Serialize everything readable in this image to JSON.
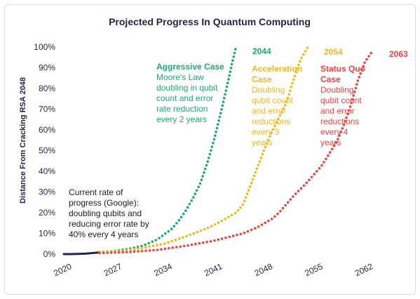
{
  "chart_data": {
    "type": "line",
    "title": "Projected Progress In Quantum Computing",
    "ylabel": "Distance From Cracking RSA 2048",
    "xlabel": "",
    "x_ticks": [
      "2020",
      "2027",
      "2034",
      "2041",
      "2048",
      "2055",
      "2062"
    ],
    "y_ticks": [
      "0%",
      "10%",
      "20%",
      "30%",
      "40%",
      "50%",
      "60%",
      "70%",
      "80%",
      "90%",
      "100%"
    ],
    "xlim": [
      2020,
      2063
    ],
    "ylim": [
      0,
      100
    ],
    "y_unit": "%",
    "current_rate_note": [
      "Current rate of",
      "progress (Google):",
      "doubling qubits and",
      "reducing error rate by",
      "40% every 4 years"
    ],
    "current_rate_color": "#1f2544",
    "current_rate": {
      "x": [
        2020,
        2021,
        2022,
        2023,
        2024,
        2025
      ],
      "y": [
        0,
        0,
        0.1,
        0.2,
        0.5,
        0.8
      ]
    },
    "series": [
      {
        "key": "aggressive",
        "color": "#1faa72",
        "end_label": "2044",
        "annotation_title": [
          "Aggressive Case"
        ],
        "annotation_body": [
          "Moore's Law",
          "doubling in qubit",
          "count and error",
          "rate reduction",
          "every 2 years"
        ],
        "x": [
          2025,
          2027,
          2029,
          2031,
          2033,
          2035,
          2036,
          2037,
          2038,
          2039,
          2040,
          2041,
          2042,
          2043,
          2043.5,
          2044
        ],
        "y": [
          1,
          1.5,
          2.5,
          4,
          7,
          12,
          16,
          21,
          27,
          34,
          44,
          56,
          70,
          85,
          93,
          100
        ]
      },
      {
        "key": "acceleration",
        "color": "#f0b71f",
        "end_label": "2054",
        "annotation_title": [
          "Acceleration",
          "Case"
        ],
        "annotation_body": [
          "Doubling",
          "qubit count",
          "and error",
          "reductions",
          "every 3",
          "years"
        ],
        "x": [
          2025,
          2028,
          2031,
          2034,
          2037,
          2040,
          2042,
          2044,
          2045,
          2046,
          2047,
          2048,
          2049,
          2050,
          2051,
          2052,
          2053,
          2054
        ],
        "y": [
          1,
          1.5,
          3,
          5,
          8.5,
          12.5,
          16,
          20,
          24,
          33,
          42,
          51,
          59,
          66,
          73,
          84,
          94,
          100
        ]
      },
      {
        "key": "status_quo",
        "color": "#ef4242",
        "end_label": "2063",
        "annotation_title": [
          "Status Quo",
          "Case"
        ],
        "annotation_body": [
          "Doubling",
          "qubit count",
          "and error",
          "reductions",
          "every 4",
          "years"
        ],
        "x": [
          2025,
          2029,
          2033,
          2037,
          2041,
          2045,
          2047,
          2049,
          2050,
          2051,
          2052,
          2054,
          2056,
          2058,
          2059,
          2060,
          2061,
          2062,
          2063
        ],
        "y": [
          0.5,
          1,
          2,
          4,
          6.5,
          10,
          13,
          17,
          20,
          24,
          28,
          35,
          43,
          54,
          62,
          72,
          84,
          93,
          98
        ]
      }
    ]
  }
}
